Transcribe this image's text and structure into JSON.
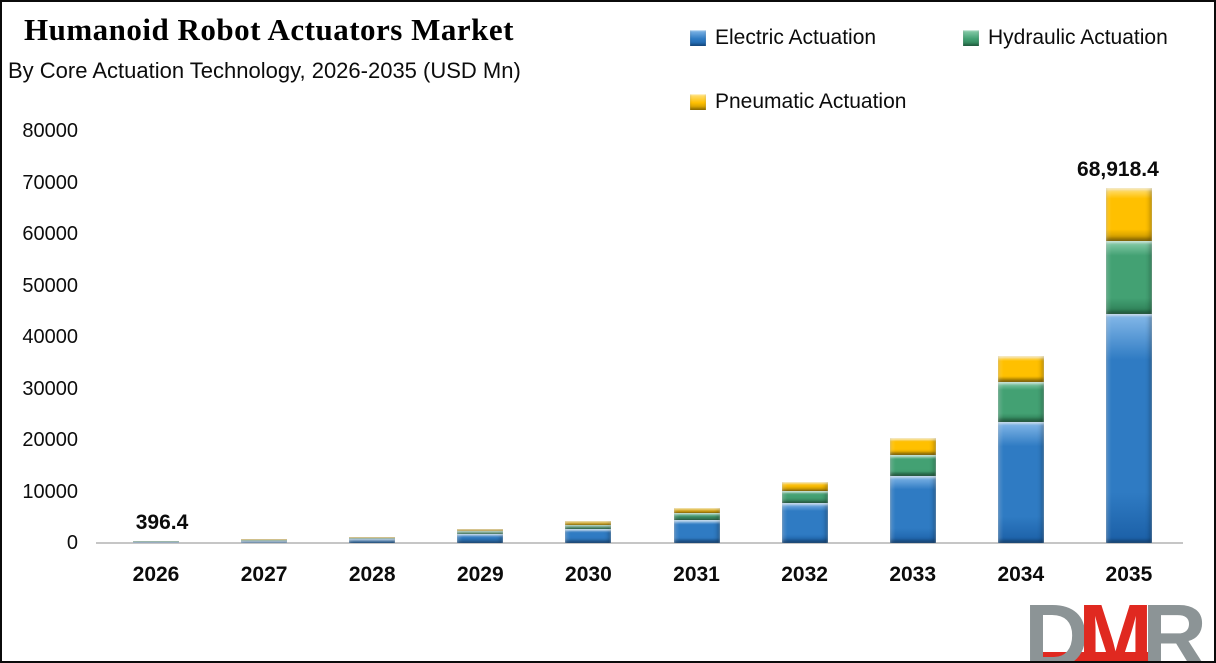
{
  "chart": {
    "title": "Humanoid Robot Actuators Market",
    "subtitle": "By Core Actuation Technology, 2026-2035 (USD Mn)"
  },
  "chart_data": {
    "type": "bar",
    "stacked": true,
    "title": "Humanoid Robot Actuators Market",
    "subtitle": "By Core Actuation Technology, 2026-2035 (USD Mn)",
    "xlabel": "",
    "ylabel": "",
    "ylim": [
      0,
      80000
    ],
    "ytick_step": 10000,
    "yticks": [
      "0",
      "10000",
      "20000",
      "30000",
      "40000",
      "50000",
      "60000",
      "70000",
      "80000"
    ],
    "grid": false,
    "legend_position": "top-right",
    "categories": [
      "2026",
      "2027",
      "2028",
      "2029",
      "2030",
      "2031",
      "2032",
      "2033",
      "2034",
      "2035"
    ],
    "series": [
      {
        "name": "Electric Actuation",
        "color": "#2F7BC3",
        "color_light": "#85B9E9",
        "color_dark": "#1B5FA6",
        "values": [
          258,
          455,
          815,
          1820,
          2730,
          4420,
          7670,
          13000,
          23400,
          44500
        ]
      },
      {
        "name": "Hydraulic Actuation",
        "color": "#43A173",
        "color_light": "#8ED0AF",
        "color_dark": "#2B7A52",
        "values": [
          79,
          140,
          250,
          560,
          840,
          1360,
          2360,
          4100,
          7800,
          14200
        ]
      },
      {
        "name": "Pneumatic Actuation",
        "color": "#FFC000",
        "color_light": "#FFE385",
        "color_dark": "#B98C00",
        "values": [
          59.4,
          105,
          185,
          420,
          630,
          1020,
          1770,
          3200,
          5100,
          10218.4
        ]
      }
    ],
    "totals": [
      396.4,
      700,
      1250,
      2800,
      4200,
      6800,
      11800,
      20300,
      36300,
      68918.4
    ],
    "data_labels": [
      {
        "category": "2026",
        "text": "396.4"
      },
      {
        "category": "2035",
        "text": "68,918.4"
      }
    ]
  },
  "logo": {
    "letters": [
      {
        "text": "D",
        "color": "#8C9496"
      },
      {
        "text": "M",
        "color": "#E02920"
      },
      {
        "text": "R",
        "color": "#8C9496"
      }
    ],
    "underline_color": "#E02920"
  },
  "colors": {
    "axis_line": "#C6C6C6",
    "background": "#FFFFFF",
    "border": "#0B0B0B",
    "text": "#0C0C0C"
  }
}
